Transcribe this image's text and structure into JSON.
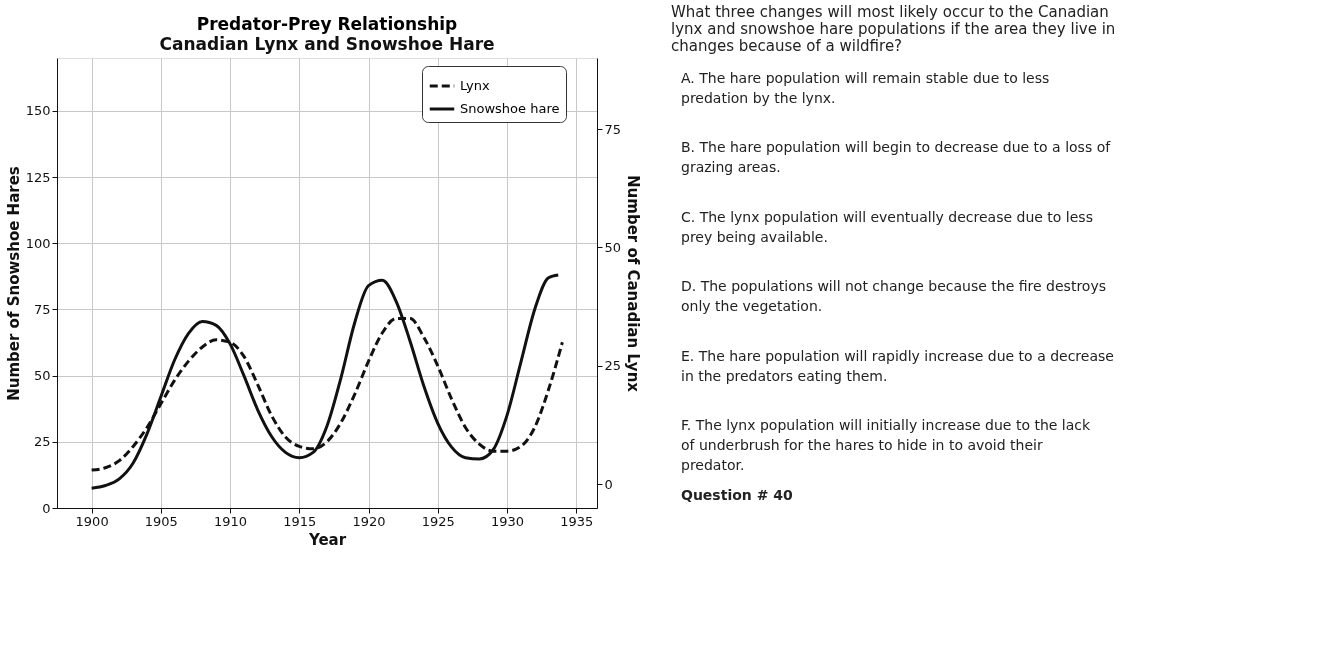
{
  "chart_data": [
    {
      "type": "line",
      "title": "Predator-Prey Relationship",
      "subtitle": "Canadian Lynx and Snowshoe Hare",
      "xlabel": "Year",
      "ylabel": "Number of Snowshoe Hares",
      "y2label": "Number of Canadian Lynx",
      "xlim": [
        1897.5,
        1936.5
      ],
      "xticks": [
        1900,
        1905,
        1910,
        1915,
        1920,
        1925,
        1930,
        1935
      ],
      "ylim": [
        0,
        170
      ],
      "yticks": [
        0,
        25,
        50,
        75,
        100,
        125,
        150
      ],
      "y2lim": [
        -5,
        90
      ],
      "y2ticks": [
        0,
        25,
        50,
        75
      ],
      "grid": true,
      "legend": "top right",
      "series": [
        {
          "name": "Lynx",
          "color": "#111111",
          "axis": "y2",
          "line_style": "dashed",
          "x": [
            1900,
            1901,
            1902,
            1903,
            1904,
            1905,
            1906,
            1907,
            1908,
            1909,
            1910,
            1911,
            1912,
            1913,
            1914,
            1915,
            1916,
            1917,
            1918,
            1919,
            1920,
            1921,
            1922,
            1923,
            1924,
            1925,
            1926,
            1927,
            1928,
            1929,
            1930,
            1931,
            1932,
            1933,
            1934
          ],
          "values": [
            3,
            3.5,
            5,
            8,
            12,
            17,
            22,
            26,
            29,
            30.5,
            30,
            27,
            21,
            14.5,
            10,
            8,
            7.5,
            9,
            13,
            19,
            26,
            32,
            35,
            35,
            31,
            25,
            18,
            12,
            8.5,
            7,
            7,
            8,
            12,
            20,
            30
          ]
        },
        {
          "name": "Snowshoe hare",
          "color": "#111111",
          "axis": "y",
          "line_style": "solid",
          "x": [
            1900,
            1901,
            1902,
            1903,
            1904,
            1905,
            1906,
            1907,
            1908,
            1909,
            1910,
            1911,
            1912,
            1913,
            1914,
            1915,
            1916,
            1917,
            1918,
            1919,
            1920,
            1921,
            1922,
            1923,
            1924,
            1925,
            1926,
            1927,
            1928,
            1929,
            1930,
            1931,
            1932,
            1933,
            1933.7
          ],
          "values": [
            7.5,
            8.5,
            11,
            17,
            28,
            42,
            56,
            66,
            70.5,
            69,
            62,
            50,
            37,
            27,
            21,
            19,
            21,
            31,
            49,
            70,
            84,
            86,
            78,
            63,
            46,
            32,
            23,
            19,
            18.5,
            22,
            35,
            55,
            75,
            87,
            88
          ]
        }
      ]
    },
    {
      "type": "other",
      "title": "What three changes will most likely occur to the Canadian lynx and snowshoe hare populations if the area they live in changes because of a wildfire?",
      "annotations": [
        "A. The hare population will remain stable due to less predation by the lynx.",
        "B. The hare population will begin to decrease due to a loss of grazing areas.",
        "C. The lynx population will eventually decrease due to less prey being available.",
        "D. The populations will not change because the fire destroys only the vegetation.",
        "E. The hare population will rapidly increase due to a decrease in the predators eating them.",
        "F. The lynx population will initially increase due to the lack of underbrush for the hares to hide in to avoid their predator.",
        "Question # 40"
      ]
    }
  ]
}
